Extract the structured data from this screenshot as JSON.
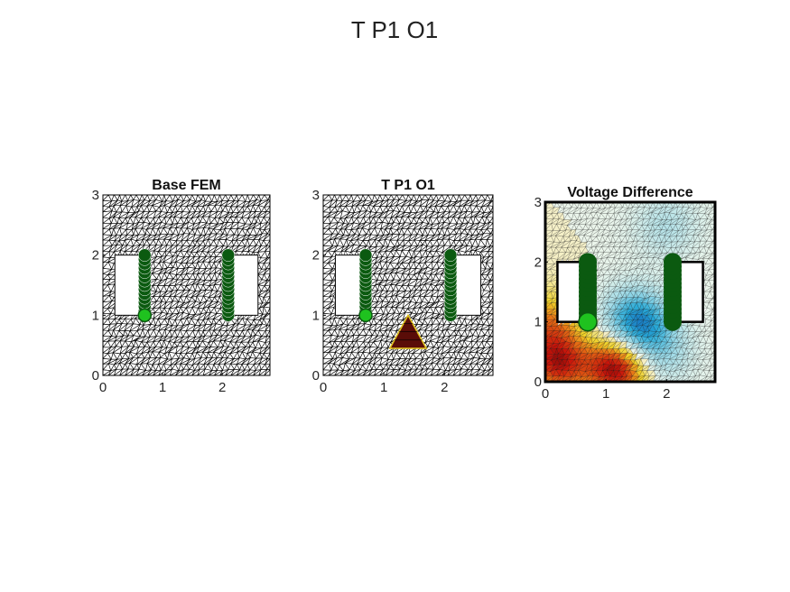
{
  "figure": {
    "title": "T P1 O1"
  },
  "colors": {
    "mesh": "#000000",
    "electrode_dark": "#0b5a10",
    "electrode_bright": "#1fc21f",
    "target": "#5a0d08",
    "target_edge": "#e2c21a"
  },
  "chart_data": [
    {
      "type": "heatmap",
      "title": "Base FEM",
      "x_ticks": [
        "0",
        "1",
        "2"
      ],
      "y_ticks": [
        "0",
        "1",
        "2",
        "3"
      ],
      "xlim": [
        0,
        2.8
      ],
      "ylim": [
        0,
        3
      ],
      "domain": [
        [
          0,
          0
        ],
        [
          2.8,
          3
        ]
      ],
      "holes": [
        [
          [
            0.2,
            1.0
          ],
          [
            0.7,
            2.0
          ]
        ],
        [
          [
            2.05,
            1.0
          ],
          [
            2.6,
            2.0
          ]
        ]
      ],
      "electrodes": [
        {
          "x": 0.7,
          "y_start": 1.0,
          "y_end": 2.0,
          "highlight_y": 1.0
        },
        {
          "x": 2.1,
          "y_start": 1.0,
          "y_end": 2.0
        }
      ],
      "mesh": "triangular"
    },
    {
      "type": "heatmap",
      "title": "T P1 O1",
      "x_ticks": [
        "0",
        "1",
        "2"
      ],
      "y_ticks": [
        "0",
        "1",
        "2",
        "3"
      ],
      "xlim": [
        0,
        2.8
      ],
      "ylim": [
        0,
        3
      ],
      "domain": [
        [
          0,
          0
        ],
        [
          2.8,
          3
        ]
      ],
      "holes": [
        [
          [
            0.2,
            1.0
          ],
          [
            0.7,
            2.0
          ]
        ],
        [
          [
            2.05,
            1.0
          ],
          [
            2.6,
            2.0
          ]
        ]
      ],
      "electrodes": [
        {
          "x": 0.7,
          "y_start": 1.0,
          "y_end": 2.0,
          "highlight_y": 1.0
        },
        {
          "x": 2.1,
          "y_start": 1.0,
          "y_end": 2.0
        }
      ],
      "target_triangle": [
        [
          1.1,
          0.45
        ],
        [
          1.4,
          1.0
        ],
        [
          1.7,
          0.45
        ]
      ],
      "mesh": "triangular"
    },
    {
      "type": "heatmap",
      "title": "Voltage Difference",
      "x_ticks": [
        "0",
        "1",
        "2"
      ],
      "y_ticks": [
        "0",
        "1",
        "2",
        "3"
      ],
      "xlim": [
        0,
        2.8
      ],
      "ylim": [
        0,
        3
      ],
      "domain": [
        [
          0,
          0
        ],
        [
          2.8,
          3
        ]
      ],
      "holes": [
        [
          [
            0.2,
            1.0
          ],
          [
            0.7,
            2.0
          ]
        ],
        [
          [
            2.05,
            1.0
          ],
          [
            2.6,
            2.0
          ]
        ]
      ],
      "electrodes": [
        {
          "x": 0.7,
          "y_start": 1.0,
          "y_end": 2.0,
          "highlight_y": 1.0
        },
        {
          "x": 2.1,
          "y_start": 1.0,
          "y_end": 2.0
        }
      ],
      "field_hotspots": [
        {
          "x": 1.2,
          "y": 0.25,
          "value": 1.0
        },
        {
          "x": 0.2,
          "y": 0.3,
          "value": 0.8
        },
        {
          "x": 1.5,
          "y": 1.0,
          "value": -0.9
        },
        {
          "x": 1.85,
          "y": 0.5,
          "value": -0.4
        },
        {
          "x": 0.05,
          "y": 1.0,
          "value": 0.5
        },
        {
          "x": 2.0,
          "y": 2.6,
          "value": -0.25
        }
      ],
      "mesh": "triangular"
    }
  ]
}
